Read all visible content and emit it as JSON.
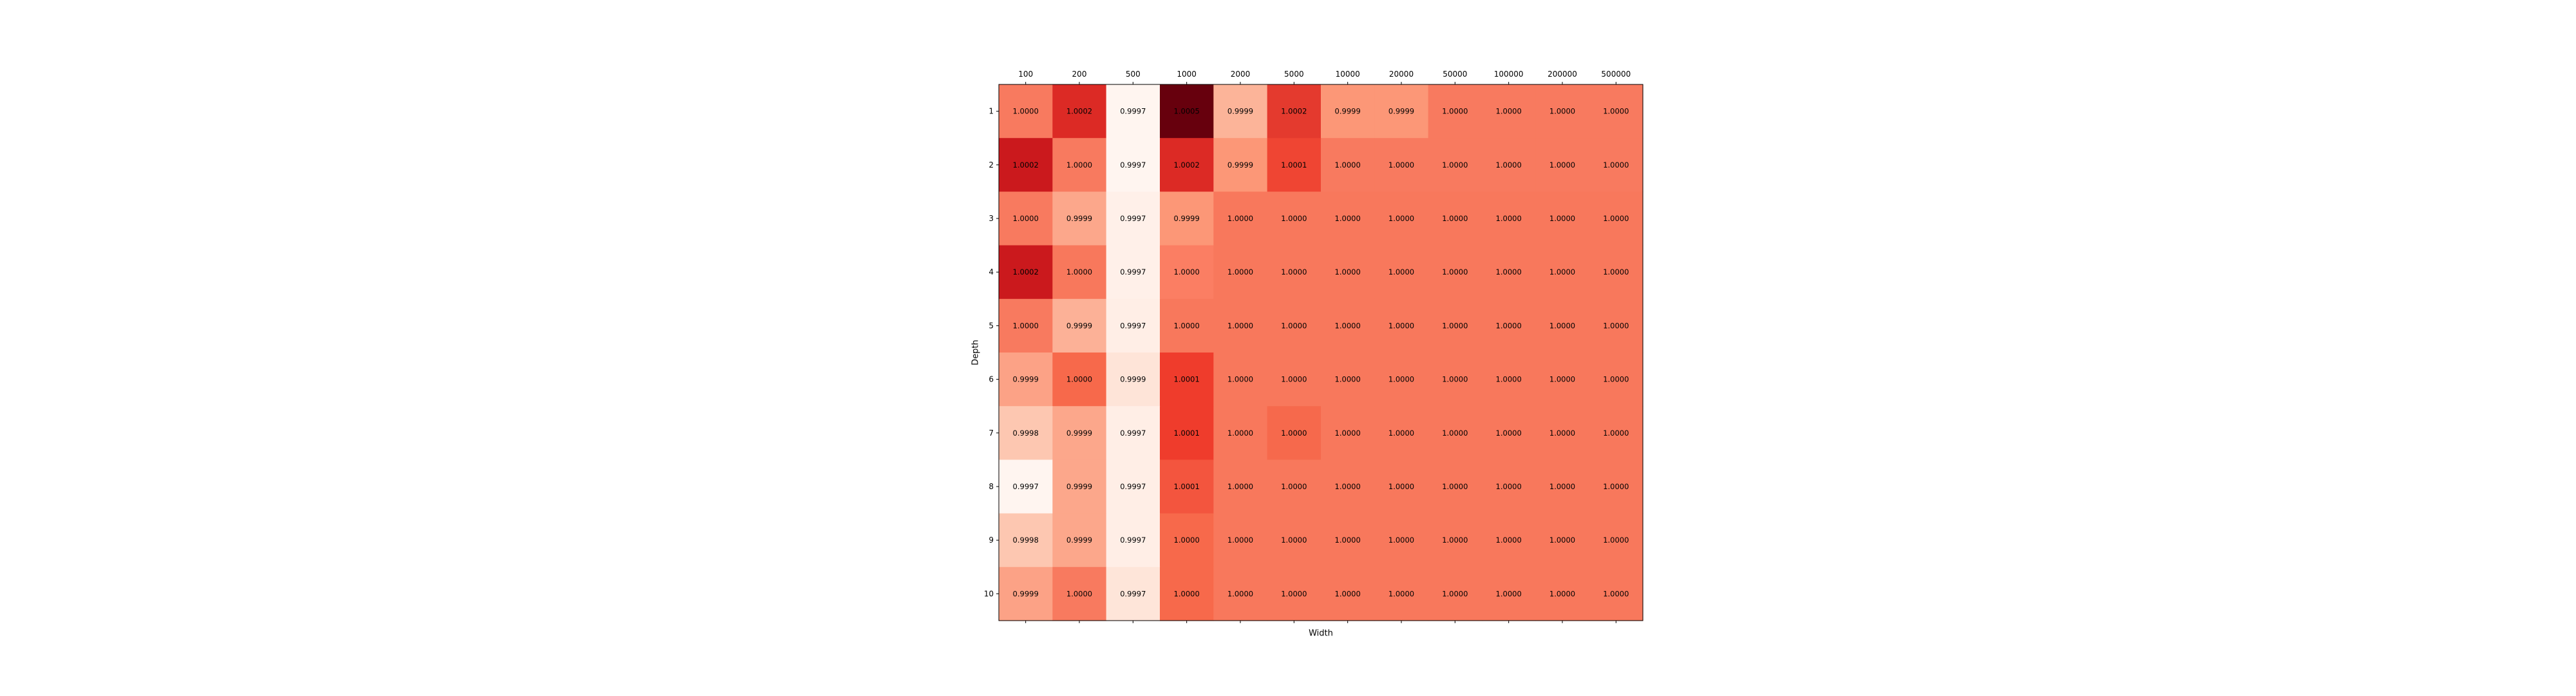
{
  "chart_data": {
    "type": "heatmap",
    "xlabel": "Width",
    "ylabel": "Depth",
    "x_categories": [
      "100",
      "200",
      "500",
      "1000",
      "2000",
      "5000",
      "10000",
      "20000",
      "50000",
      "100000",
      "200000",
      "500000"
    ],
    "y_categories": [
      "1",
      "2",
      "3",
      "4",
      "5",
      "6",
      "7",
      "8",
      "9",
      "10"
    ],
    "x_axis_position": "top",
    "grid": false,
    "colormap": [
      "#fff5f0",
      "#fee0d2",
      "#fcbba1",
      "#fc9272",
      "#fb6a4a",
      "#ef3b2c",
      "#cb181d",
      "#a50f15",
      "#67000d"
    ],
    "color_range": [
      0.9997,
      1.0005
    ],
    "values": [
      [
        1.0,
        1.0002,
        0.9997,
        1.0005,
        0.9999,
        1.0002,
        0.9999,
        0.9999,
        1.0,
        1.0,
        1.0,
        1.0
      ],
      [
        1.0002,
        1.0,
        0.9997,
        1.0002,
        0.9999,
        1.0001,
        1.0,
        1.0,
        1.0,
        1.0,
        1.0,
        1.0
      ],
      [
        1.0,
        0.9999,
        0.9997,
        0.9999,
        1.0,
        1.0,
        1.0,
        1.0,
        1.0,
        1.0,
        1.0,
        1.0
      ],
      [
        1.0002,
        1.0,
        0.9997,
        1.0,
        1.0,
        1.0,
        1.0,
        1.0,
        1.0,
        1.0,
        1.0,
        1.0
      ],
      [
        1.0,
        0.9999,
        0.9997,
        1.0,
        1.0,
        1.0,
        1.0,
        1.0,
        1.0,
        1.0,
        1.0,
        1.0
      ],
      [
        0.9999,
        1.0,
        0.9999,
        1.0001,
        1.0,
        1.0,
        1.0,
        1.0,
        1.0,
        1.0,
        1.0,
        1.0
      ],
      [
        0.9998,
        0.9999,
        0.9997,
        1.0001,
        1.0,
        1.0,
        1.0,
        1.0,
        1.0,
        1.0,
        1.0,
        1.0
      ],
      [
        0.9997,
        0.9999,
        0.9997,
        1.0001,
        1.0,
        1.0,
        1.0,
        1.0,
        1.0,
        1.0,
        1.0,
        1.0
      ],
      [
        0.9998,
        0.9999,
        0.9997,
        1.0,
        1.0,
        1.0,
        1.0,
        1.0,
        1.0,
        1.0,
        1.0,
        1.0
      ],
      [
        0.9999,
        1.0,
        0.9997,
        1.0,
        1.0,
        1.0,
        1.0,
        1.0,
        1.0,
        1.0,
        1.0,
        1.0
      ]
    ],
    "cell_labels": [
      [
        "1.0000",
        "1.0002",
        "0.9997",
        "1.0005",
        "0.9999",
        "1.0002",
        "0.9999",
        "0.9999",
        "1.0000",
        "1.0000",
        "1.0000",
        "1.0000"
      ],
      [
        "1.0002",
        "1.0000",
        "0.9997",
        "1.0002",
        "0.9999",
        "1.0001",
        "1.0000",
        "1.0000",
        "1.0000",
        "1.0000",
        "1.0000",
        "1.0000"
      ],
      [
        "1.0000",
        "0.9999",
        "0.9997",
        "0.9999",
        "1.0000",
        "1.0000",
        "1.0000",
        "1.0000",
        "1.0000",
        "1.0000",
        "1.0000",
        "1.0000"
      ],
      [
        "1.0002",
        "1.0000",
        "0.9997",
        "1.0000",
        "1.0000",
        "1.0000",
        "1.0000",
        "1.0000",
        "1.0000",
        "1.0000",
        "1.0000",
        "1.0000"
      ],
      [
        "1.0000",
        "0.9999",
        "0.9997",
        "1.0000",
        "1.0000",
        "1.0000",
        "1.0000",
        "1.0000",
        "1.0000",
        "1.0000",
        "1.0000",
        "1.0000"
      ],
      [
        "0.9999",
        "1.0000",
        "0.9999",
        "1.0001",
        "1.0000",
        "1.0000",
        "1.0000",
        "1.0000",
        "1.0000",
        "1.0000",
        "1.0000",
        "1.0000"
      ],
      [
        "0.9998",
        "0.9999",
        "0.9997",
        "1.0001",
        "1.0000",
        "1.0000",
        "1.0000",
        "1.0000",
        "1.0000",
        "1.0000",
        "1.0000",
        "1.0000"
      ],
      [
        "0.9997",
        "0.9999",
        "0.9997",
        "1.0001",
        "1.0000",
        "1.0000",
        "1.0000",
        "1.0000",
        "1.0000",
        "1.0000",
        "1.0000",
        "1.0000"
      ],
      [
        "0.9998",
        "0.9999",
        "0.9997",
        "1.0000",
        "1.0000",
        "1.0000",
        "1.0000",
        "1.0000",
        "1.0000",
        "1.0000",
        "1.0000",
        "1.0000"
      ],
      [
        "0.9999",
        "1.0000",
        "0.9997",
        "1.0000",
        "1.0000",
        "1.0000",
        "1.0000",
        "1.0000",
        "1.0000",
        "1.0000",
        "1.0000",
        "1.0000"
      ]
    ],
    "cell_colors": [
      [
        "#f87a5f",
        "#dc2a25",
        "#fff5f0",
        "#67000d",
        "#fcb499",
        "#e43a2e",
        "#fc9777",
        "#fc9777",
        "#f87a5f",
        "#f87a5f",
        "#f87a5f",
        "#f87a5f"
      ],
      [
        "#cb191d",
        "#f87a5f",
        "#fff5f0",
        "#dc2a25",
        "#fc9777",
        "#ef4533",
        "#f87a5f",
        "#f87a5f",
        "#f87a5f",
        "#f87a5f",
        "#f87a5f",
        "#f87a5f"
      ],
      [
        "#f87a5f",
        "#fca78b",
        "#fff0e9",
        "#fc9777",
        "#f8785c",
        "#f8785c",
        "#f8785c",
        "#f8785c",
        "#f8785c",
        "#f8785c",
        "#f8785c",
        "#f8785c"
      ],
      [
        "#cb191d",
        "#f8785c",
        "#fff0e9",
        "#fb7e63",
        "#f8785c",
        "#f8785c",
        "#f8785c",
        "#f8785c",
        "#f8785c",
        "#f8785c",
        "#f8785c",
        "#f8785c"
      ],
      [
        "#f87a5f",
        "#fcb197",
        "#ffeee6",
        "#f8785c",
        "#f8785c",
        "#f8785c",
        "#f8785c",
        "#f8785c",
        "#f8785c",
        "#f8785c",
        "#f8785c",
        "#f8785c"
      ],
      [
        "#fca286",
        "#f7694b",
        "#fee4d8",
        "#ef3c2c",
        "#f8785c",
        "#f8785c",
        "#f8785c",
        "#f8785c",
        "#f8785c",
        "#f8785c",
        "#f8785c",
        "#f8785c"
      ],
      [
        "#fdc7b1",
        "#fca78b",
        "#ffeee6",
        "#ef3c2c",
        "#f8785c",
        "#f6694c",
        "#f8785c",
        "#f8785c",
        "#f8785c",
        "#f8785c",
        "#f8785c",
        "#f8785c"
      ],
      [
        "#fff5f0",
        "#fca78b",
        "#ffeee6",
        "#f3553e",
        "#f8785c",
        "#f8785c",
        "#f8785c",
        "#f8785c",
        "#f8785c",
        "#f8785c",
        "#f8785c",
        "#f8785c"
      ],
      [
        "#fdc7b1",
        "#fca78b",
        "#ffeee6",
        "#f7694b",
        "#f8785c",
        "#f8785c",
        "#f8785c",
        "#f8785c",
        "#f8785c",
        "#f8785c",
        "#f8785c",
        "#f8785c"
      ],
      [
        "#fca286",
        "#f87a5f",
        "#fee5d9",
        "#f7694b",
        "#f8785c",
        "#f8785c",
        "#f8785c",
        "#f8785c",
        "#f8785c",
        "#f8785c",
        "#f8785c",
        "#f8785c"
      ]
    ]
  }
}
